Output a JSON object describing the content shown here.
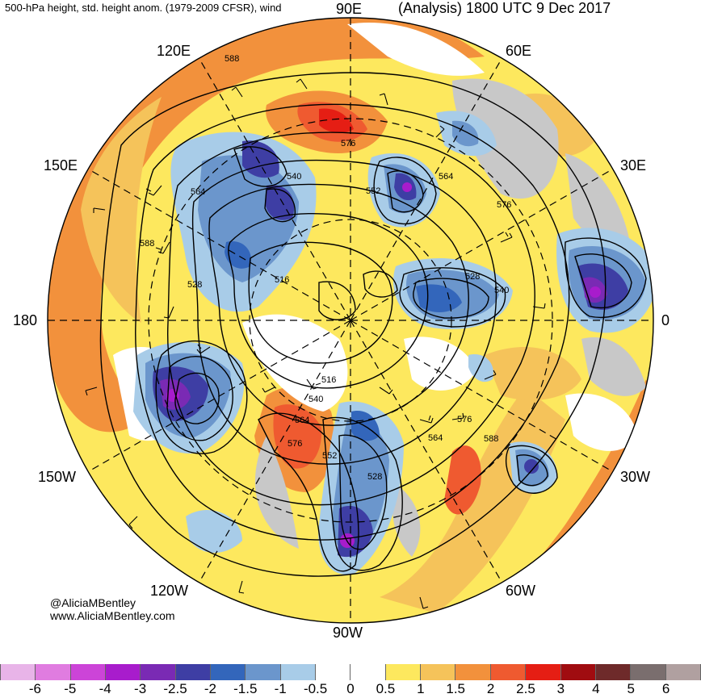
{
  "header": {
    "left": "500-hPa height, std. height anom. (1979-2009 CFSR), wind",
    "right": "(Analysis) 1800 UTC 9 Dec 2017"
  },
  "map_labels": {
    "lon_90e": "90E",
    "lon_60e": "60E",
    "lon_120e": "120E",
    "lon_150e": "150E",
    "lon_30e": "30E",
    "lon_180": "180",
    "lon_0": "0",
    "lon_150w": "150W",
    "lon_30w": "30W",
    "lon_120w": "120W",
    "lon_60w": "60W",
    "lon_90w": "90W"
  },
  "contour_labels": [
    "588",
    "576",
    "564",
    "540",
    "552",
    "564",
    "576",
    "588",
    "528",
    "516",
    "528",
    "540",
    "516",
    "540",
    "564",
    "576",
    "552",
    "528",
    "564",
    "576",
    "588"
  ],
  "credits": {
    "handle": "@AliciaMBentley",
    "website": "www.AliciaMBentley.com"
  },
  "colorbar": {
    "colors": [
      "#e8b4e8",
      "#e07ce0",
      "#cc44d8",
      "#a81ccc",
      "#7a2ab4",
      "#3e3ea4",
      "#3366bb",
      "#6b96cc",
      "#a8cce8",
      "#ffffff",
      "#ffffff",
      "#fde85e",
      "#f5c35a",
      "#f2913c",
      "#ef5a30",
      "#e51e14",
      "#a00c10",
      "#6e2a2a",
      "#7a6e6e",
      "#b0a0a0"
    ],
    "ticks": [
      "-6",
      "-5",
      "-4",
      "-3",
      "-2.5",
      "-2",
      "-1.5",
      "-1",
      "-0.5",
      "0",
      "0.5",
      "1",
      "1.5",
      "2",
      "2.5",
      "3",
      "4",
      "5",
      "6"
    ]
  },
  "colors": {
    "land_gray": "#c8c8c8",
    "positive_light": "#fde85e",
    "positive_mid": "#f5c35a",
    "positive_strong": "#f2913c",
    "positive_max": "#e51e14",
    "negative_light": "#a8cce8",
    "negative_mid": "#6b96cc",
    "negative_strong": "#3e3ea4",
    "negative_max": "#a81ccc"
  }
}
